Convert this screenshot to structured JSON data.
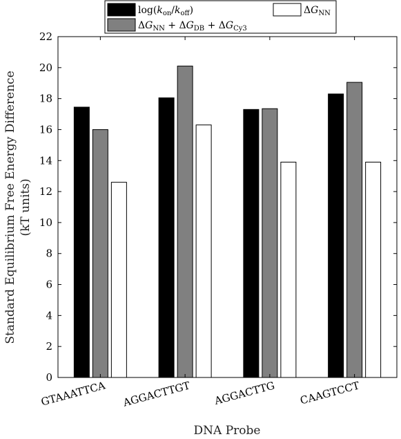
{
  "chart_data": {
    "type": "bar",
    "categories": [
      "GTAAATTCA",
      "AGGACTTGT",
      "AGGACTTG",
      "CAAGTCCT"
    ],
    "series": [
      {
        "name": "log(k_on/k_off)",
        "color": "#000000",
        "values": [
          17.45,
          18.05,
          17.3,
          18.3
        ]
      },
      {
        "name": "ΔG_NN + ΔG_DB + ΔG_Cy3",
        "color": "#808080",
        "values": [
          16.0,
          20.1,
          17.35,
          19.05
        ]
      },
      {
        "name": "ΔG_NN",
        "color": "#ffffff",
        "values": [
          12.6,
          16.3,
          13.9,
          13.9
        ]
      }
    ],
    "xlabel": "DNA Probe",
    "ylabel": [
      "Standard Equilibrium Free Energy Difference",
      "(kT units)"
    ],
    "ylim": [
      0,
      22
    ],
    "yticks": [
      0,
      2,
      4,
      6,
      8,
      10,
      12,
      14,
      16,
      18,
      20,
      22
    ],
    "grid": false,
    "legend_position": "top-outside"
  }
}
